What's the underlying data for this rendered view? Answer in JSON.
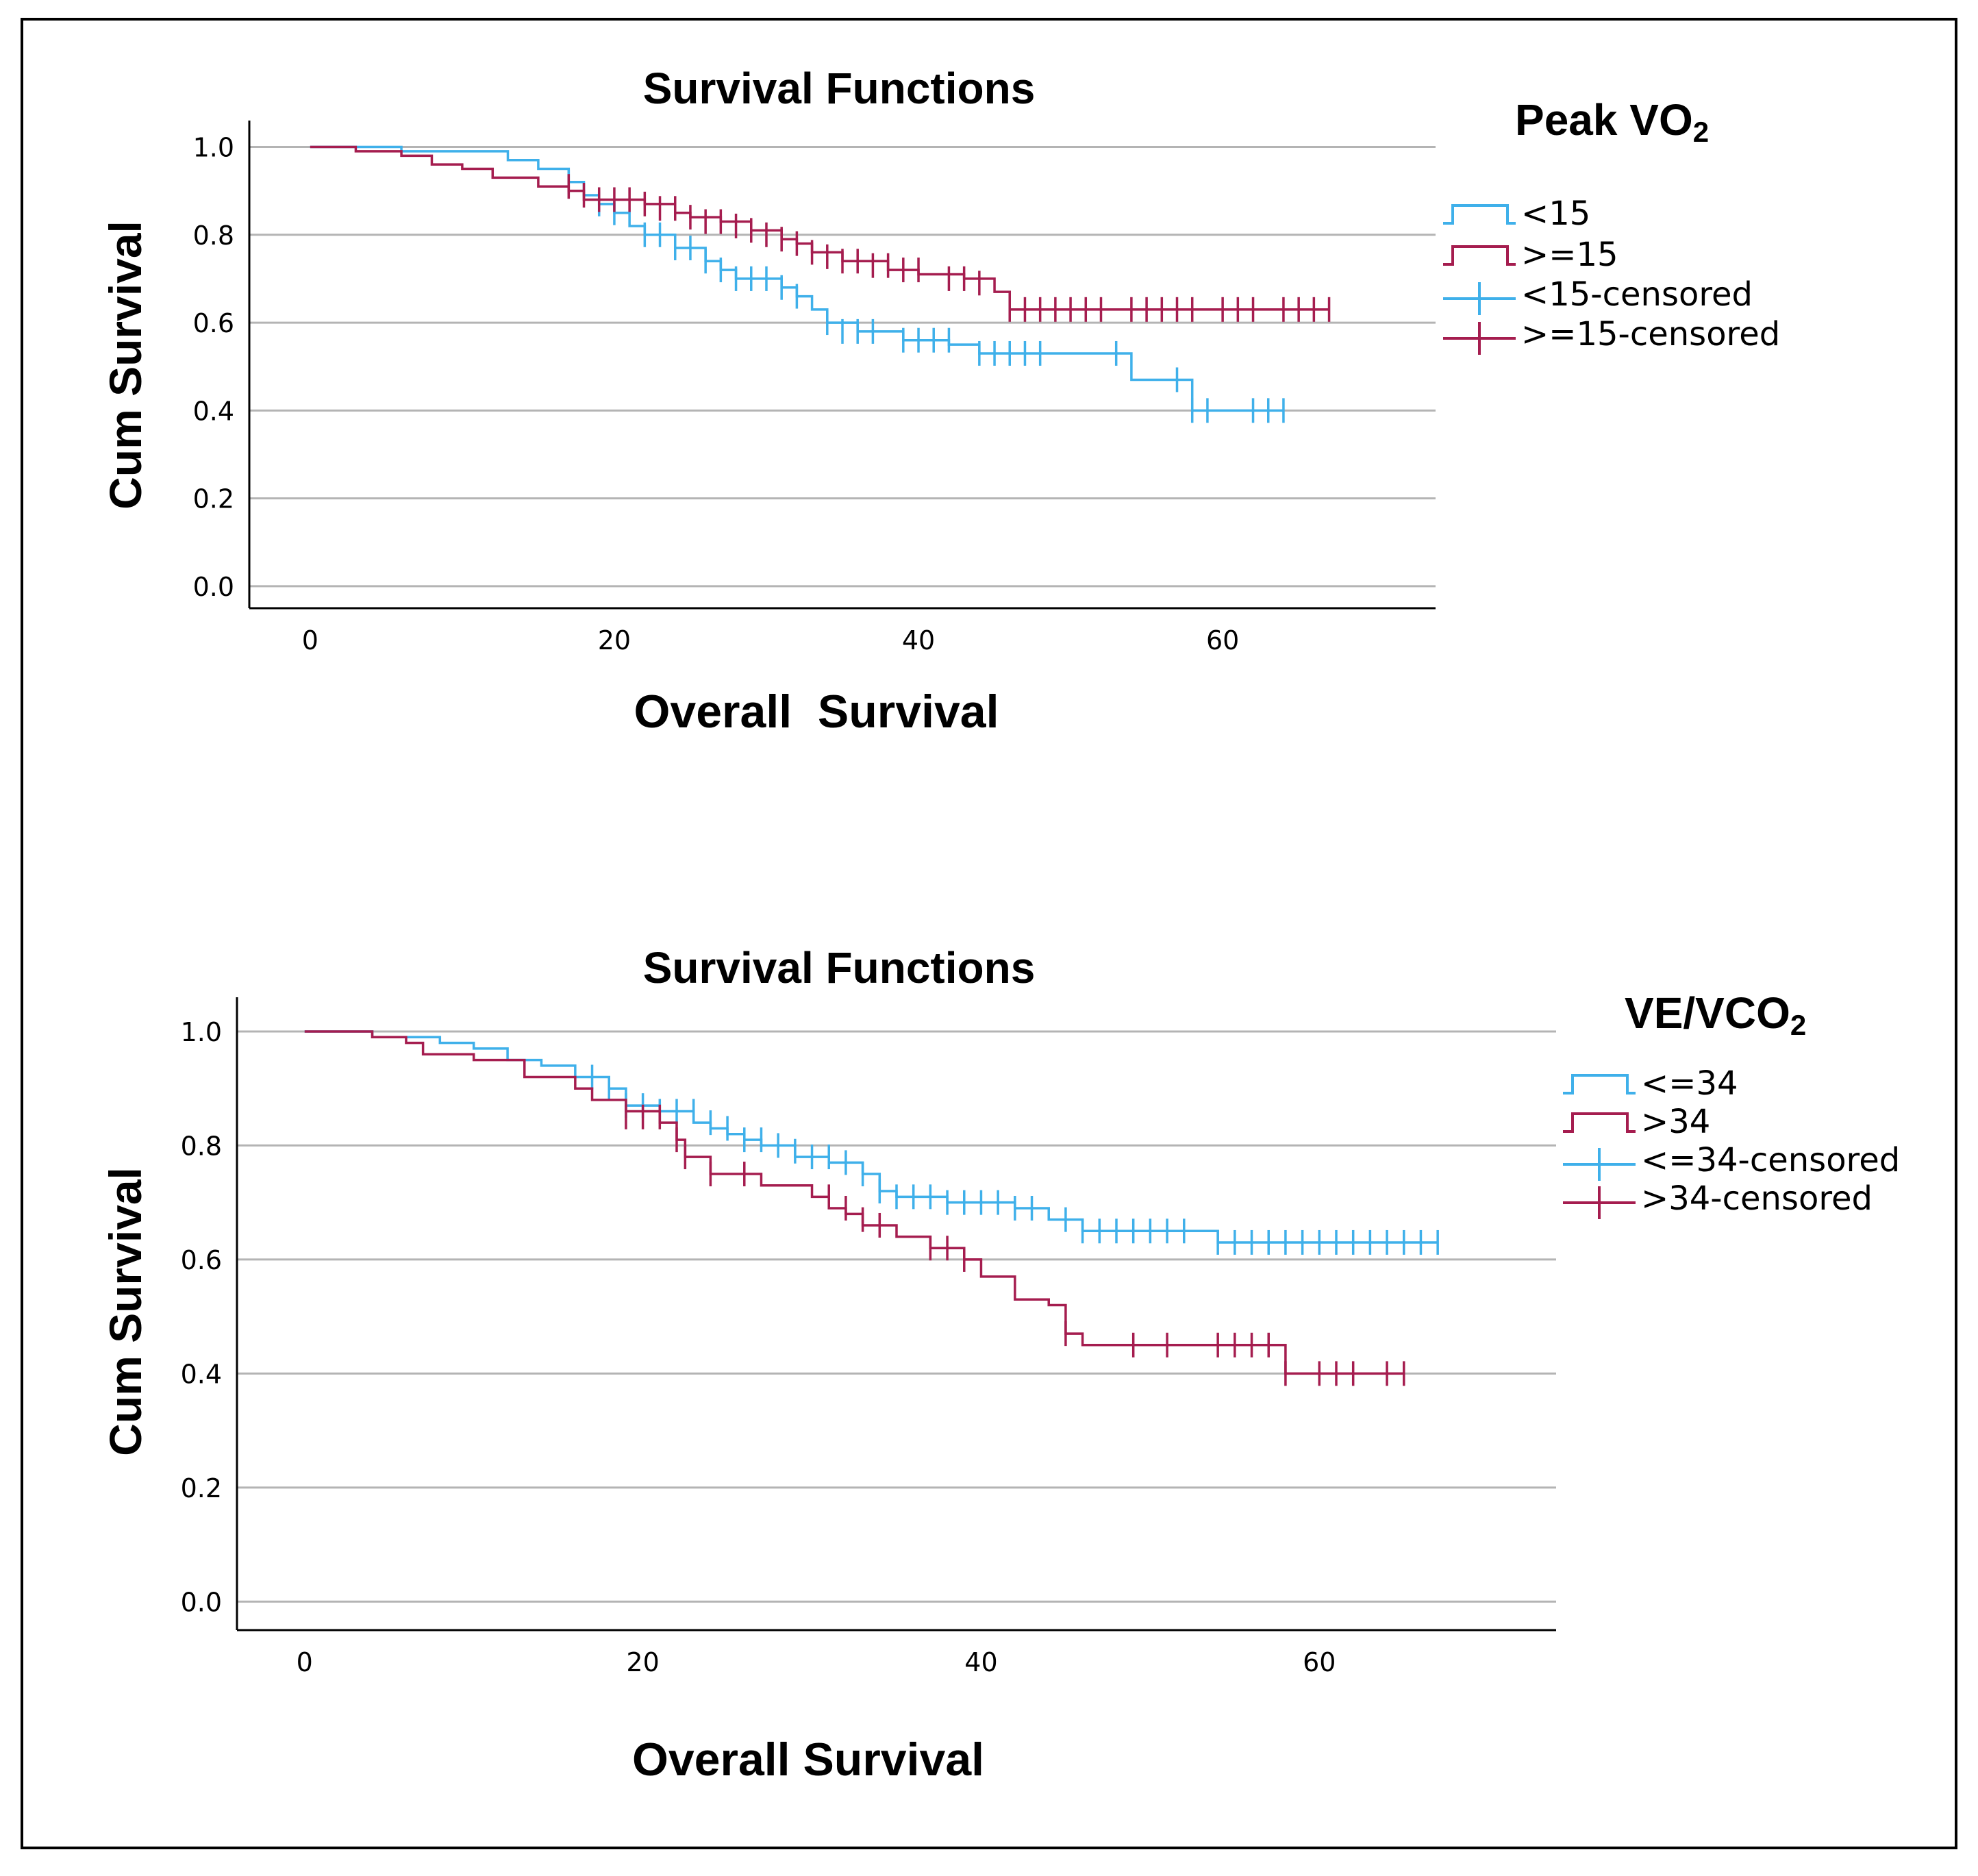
{
  "colors": {
    "low": "#3fb0ea",
    "high": "#a51d4f",
    "grid": "#b4b4b4",
    "axis": "#000000"
  },
  "chart_data": [
    {
      "type": "line",
      "title": "Survival Functions",
      "xlabel": "Overall  Survival",
      "ylabel": "Cum Survival",
      "xlim": [
        -4,
        74
      ],
      "ylim": [
        -0.05,
        1.06
      ],
      "xticks": [
        0,
        20,
        40,
        60
      ],
      "yticks": [
        "0.0",
        "0.2",
        "0.4",
        "0.6",
        "0.8",
        "1.0"
      ],
      "grid": true,
      "legend": {
        "title_main": "Peak VO",
        "title_sub": "2",
        "placement": "top-right",
        "entries": [
          "<15",
          ">=15",
          "<15-censored",
          ">=15-censored"
        ]
      },
      "series": [
        {
          "name": "<15",
          "color_key": "low",
          "steps": [
            [
              0,
              1.0
            ],
            [
              6,
              0.99
            ],
            [
              13,
              0.97
            ],
            [
              15,
              0.95
            ],
            [
              17,
              0.92
            ],
            [
              18,
              0.89
            ],
            [
              19,
              0.87
            ],
            [
              20,
              0.85
            ],
            [
              21,
              0.82
            ],
            [
              22,
              0.8
            ],
            [
              24,
              0.77
            ],
            [
              26,
              0.74
            ],
            [
              27,
              0.72
            ],
            [
              28,
              0.7
            ],
            [
              31,
              0.68
            ],
            [
              32,
              0.66
            ],
            [
              33,
              0.63
            ],
            [
              34,
              0.6
            ],
            [
              36,
              0.58
            ],
            [
              39,
              0.56
            ],
            [
              42,
              0.55
            ],
            [
              44,
              0.53
            ],
            [
              54,
              0.47
            ],
            [
              58,
              0.4
            ],
            [
              64,
              0.4
            ]
          ],
          "censored": [
            [
              17,
              0.92
            ],
            [
              19,
              0.87
            ],
            [
              20,
              0.85
            ],
            [
              22,
              0.8
            ],
            [
              23,
              0.8
            ],
            [
              24,
              0.77
            ],
            [
              25,
              0.77
            ],
            [
              26,
              0.74
            ],
            [
              27,
              0.72
            ],
            [
              28,
              0.7
            ],
            [
              29,
              0.7
            ],
            [
              30,
              0.7
            ],
            [
              31,
              0.68
            ],
            [
              32,
              0.66
            ],
            [
              34,
              0.6
            ],
            [
              35,
              0.58
            ],
            [
              36,
              0.58
            ],
            [
              37,
              0.58
            ],
            [
              39,
              0.56
            ],
            [
              40,
              0.56
            ],
            [
              41,
              0.56
            ],
            [
              42,
              0.56
            ],
            [
              44,
              0.53
            ],
            [
              45,
              0.53
            ],
            [
              46,
              0.53
            ],
            [
              47,
              0.53
            ],
            [
              48,
              0.53
            ],
            [
              53,
              0.53
            ],
            [
              57,
              0.47
            ],
            [
              58,
              0.4
            ],
            [
              59,
              0.4
            ],
            [
              62,
              0.4
            ],
            [
              63,
              0.4
            ],
            [
              64,
              0.4
            ]
          ]
        },
        {
          "name": ">=15",
          "color_key": "high",
          "steps": [
            [
              0,
              1.0
            ],
            [
              3,
              0.99
            ],
            [
              6,
              0.98
            ],
            [
              8,
              0.96
            ],
            [
              10,
              0.95
            ],
            [
              12,
              0.93
            ],
            [
              15,
              0.91
            ],
            [
              17,
              0.9
            ],
            [
              18,
              0.88
            ],
            [
              22,
              0.87
            ],
            [
              24,
              0.85
            ],
            [
              25,
              0.84
            ],
            [
              27,
              0.83
            ],
            [
              29,
              0.81
            ],
            [
              31,
              0.79
            ],
            [
              32,
              0.78
            ],
            [
              33,
              0.76
            ],
            [
              35,
              0.74
            ],
            [
              38,
              0.72
            ],
            [
              40,
              0.71
            ],
            [
              43,
              0.7
            ],
            [
              45,
              0.67
            ],
            [
              46,
              0.63
            ],
            [
              67,
              0.63
            ]
          ],
          "censored": [
            [
              17,
              0.91
            ],
            [
              18,
              0.89
            ],
            [
              19,
              0.88
            ],
            [
              20,
              0.88
            ],
            [
              21,
              0.88
            ],
            [
              22,
              0.87
            ],
            [
              23,
              0.86
            ],
            [
              24,
              0.86
            ],
            [
              25,
              0.84
            ],
            [
              26,
              0.83
            ],
            [
              27,
              0.83
            ],
            [
              28,
              0.82
            ],
            [
              29,
              0.81
            ],
            [
              30,
              0.8
            ],
            [
              31,
              0.79
            ],
            [
              32,
              0.78
            ],
            [
              33,
              0.76
            ],
            [
              34,
              0.75
            ],
            [
              35,
              0.74
            ],
            [
              36,
              0.74
            ],
            [
              37,
              0.73
            ],
            [
              38,
              0.73
            ],
            [
              39,
              0.72
            ],
            [
              40,
              0.72
            ],
            [
              42,
              0.7
            ],
            [
              43,
              0.7
            ],
            [
              44,
              0.69
            ],
            [
              46,
              0.63
            ],
            [
              47,
              0.63
            ],
            [
              48,
              0.63
            ],
            [
              49,
              0.63
            ],
            [
              50,
              0.63
            ],
            [
              51,
              0.63
            ],
            [
              52,
              0.63
            ],
            [
              54,
              0.63
            ],
            [
              55,
              0.63
            ],
            [
              56,
              0.63
            ],
            [
              57,
              0.63
            ],
            [
              58,
              0.63
            ],
            [
              60,
              0.63
            ],
            [
              61,
              0.63
            ],
            [
              62,
              0.63
            ],
            [
              64,
              0.63
            ],
            [
              65,
              0.63
            ],
            [
              66,
              0.63
            ],
            [
              67,
              0.63
            ]
          ]
        }
      ]
    },
    {
      "type": "line",
      "title": "Survival Functions",
      "xlabel": "Overall Survival",
      "ylabel": "Cum Survival",
      "xlim": [
        -4,
        74
      ],
      "ylim": [
        -0.05,
        1.06
      ],
      "xticks": [
        0,
        20,
        40,
        60
      ],
      "yticks": [
        "0.0",
        "0.2",
        "0.4",
        "0.6",
        "0.8",
        "1.0"
      ],
      "grid": true,
      "legend": {
        "title_main": "VE/VCO",
        "title_sub": "2",
        "placement": "top-right",
        "entries": [
          "<=34",
          ">34",
          "<=34-censored",
          ">34-censored"
        ]
      },
      "series": [
        {
          "name": "<=34",
          "color_key": "low",
          "steps": [
            [
              0,
              1.0
            ],
            [
              4,
              0.99
            ],
            [
              8,
              0.98
            ],
            [
              10,
              0.97
            ],
            [
              12,
              0.95
            ],
            [
              14,
              0.94
            ],
            [
              16,
              0.92
            ],
            [
              18,
              0.9
            ],
            [
              19,
              0.87
            ],
            [
              21,
              0.86
            ],
            [
              23,
              0.84
            ],
            [
              24,
              0.83
            ],
            [
              25,
              0.82
            ],
            [
              26,
              0.81
            ],
            [
              27,
              0.8
            ],
            [
              29,
              0.78
            ],
            [
              31,
              0.77
            ],
            [
              33,
              0.75
            ],
            [
              34,
              0.72
            ],
            [
              35,
              0.71
            ],
            [
              38,
              0.7
            ],
            [
              42,
              0.69
            ],
            [
              44,
              0.67
            ],
            [
              46,
              0.65
            ],
            [
              54,
              0.63
            ],
            [
              67,
              0.63
            ]
          ],
          "censored": [
            [
              17,
              0.92
            ],
            [
              18,
              0.9
            ],
            [
              19,
              0.87
            ],
            [
              20,
              0.87
            ],
            [
              21,
              0.86
            ],
            [
              22,
              0.86
            ],
            [
              23,
              0.86
            ],
            [
              24,
              0.84
            ],
            [
              25,
              0.83
            ],
            [
              26,
              0.81
            ],
            [
              27,
              0.81
            ],
            [
              28,
              0.8
            ],
            [
              29,
              0.79
            ],
            [
              30,
              0.78
            ],
            [
              31,
              0.78
            ],
            [
              32,
              0.77
            ],
            [
              33,
              0.75
            ],
            [
              34,
              0.72
            ],
            [
              35,
              0.71
            ],
            [
              36,
              0.71
            ],
            [
              37,
              0.71
            ],
            [
              38,
              0.7
            ],
            [
              39,
              0.7
            ],
            [
              40,
              0.7
            ],
            [
              41,
              0.7
            ],
            [
              42,
              0.69
            ],
            [
              43,
              0.69
            ],
            [
              45,
              0.67
            ],
            [
              46,
              0.65
            ],
            [
              47,
              0.65
            ],
            [
              48,
              0.65
            ],
            [
              49,
              0.65
            ],
            [
              50,
              0.65
            ],
            [
              51,
              0.65
            ],
            [
              52,
              0.65
            ],
            [
              54,
              0.63
            ],
            [
              55,
              0.63
            ],
            [
              56,
              0.63
            ],
            [
              57,
              0.63
            ],
            [
              58,
              0.63
            ],
            [
              59,
              0.63
            ],
            [
              60,
              0.63
            ],
            [
              61,
              0.63
            ],
            [
              62,
              0.63
            ],
            [
              63,
              0.63
            ],
            [
              64,
              0.63
            ],
            [
              65,
              0.63
            ],
            [
              66,
              0.63
            ],
            [
              67,
              0.63
            ]
          ]
        },
        {
          "name": ">34",
          "color_key": "high",
          "steps": [
            [
              0,
              1.0
            ],
            [
              4,
              0.99
            ],
            [
              6,
              0.98
            ],
            [
              7,
              0.96
            ],
            [
              10,
              0.95
            ],
            [
              13,
              0.92
            ],
            [
              16,
              0.9
            ],
            [
              17,
              0.88
            ],
            [
              19,
              0.86
            ],
            [
              21,
              0.84
            ],
            [
              22,
              0.81
            ],
            [
              22.5,
              0.78
            ],
            [
              24,
              0.75
            ],
            [
              27,
              0.73
            ],
            [
              30,
              0.71
            ],
            [
              31,
              0.69
            ],
            [
              32,
              0.68
            ],
            [
              33,
              0.66
            ],
            [
              35,
              0.64
            ],
            [
              37,
              0.62
            ],
            [
              39,
              0.6
            ],
            [
              40,
              0.57
            ],
            [
              42,
              0.53
            ],
            [
              44,
              0.52
            ],
            [
              45,
              0.47
            ],
            [
              46,
              0.45
            ],
            [
              58,
              0.4
            ],
            [
              65,
              0.4
            ]
          ],
          "censored": [
            [
              19,
              0.85
            ],
            [
              20,
              0.85
            ],
            [
              21,
              0.85
            ],
            [
              22,
              0.81
            ],
            [
              22.5,
              0.78
            ],
            [
              24,
              0.75
            ],
            [
              26,
              0.75
            ],
            [
              31,
              0.71
            ],
            [
              32,
              0.69
            ],
            [
              33,
              0.67
            ],
            [
              34,
              0.66
            ],
            [
              37,
              0.62
            ],
            [
              38,
              0.62
            ],
            [
              39,
              0.6
            ],
            [
              45,
              0.47
            ],
            [
              49,
              0.45
            ],
            [
              51,
              0.45
            ],
            [
              54,
              0.45
            ],
            [
              55,
              0.45
            ],
            [
              56,
              0.45
            ],
            [
              57,
              0.45
            ],
            [
              58,
              0.4
            ],
            [
              60,
              0.4
            ],
            [
              61,
              0.4
            ],
            [
              62,
              0.4
            ],
            [
              64,
              0.4
            ],
            [
              65,
              0.4
            ]
          ]
        }
      ]
    }
  ]
}
